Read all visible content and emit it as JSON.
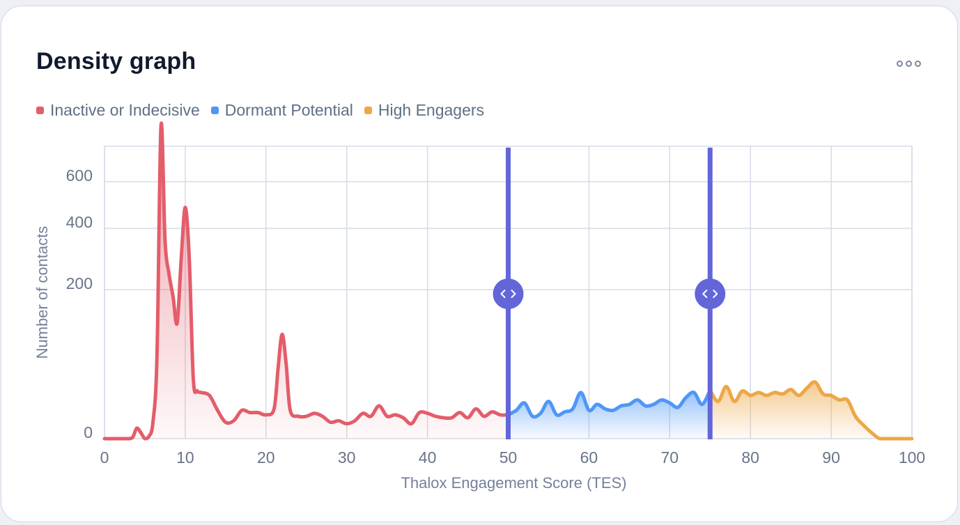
{
  "card": {
    "title": "Density graph",
    "menu_icon": "more-horizontal-icon"
  },
  "legend": [
    {
      "label": "Inactive or Indecisive",
      "color": "#e35d6a"
    },
    {
      "label": "Dormant Potential",
      "color": "#4f97f7"
    },
    {
      "label": "High Engagers",
      "color": "#eda746"
    }
  ],
  "chart_data": {
    "type": "area",
    "title": "Density graph",
    "xlabel": "Thalox Engagement Score (TES)",
    "ylabel": "Number of contacts",
    "xlim": [
      0,
      100
    ],
    "x_ticks": [
      0,
      10,
      20,
      30,
      40,
      50,
      60,
      70,
      80,
      90,
      100
    ],
    "y_ticks": [
      0,
      200,
      400,
      600
    ],
    "y_ticklabels": [
      "0",
      "200",
      "400",
      "600"
    ],
    "y_scale": "nonlinear (tick spacing 0–200 much larger than 200–600)",
    "grid": true,
    "legend_position": "top-left",
    "segments": [
      {
        "name": "Inactive or Indecisive",
        "from": 0,
        "to": 50,
        "color": "#e35d6a"
      },
      {
        "name": "Dormant Potential",
        "from": 50,
        "to": 75,
        "color": "#4f97f7"
      },
      {
        "name": "High Engagers",
        "from": 75,
        "to": 100,
        "color": "#eda746"
      }
    ],
    "thresholds": [
      {
        "value": 50,
        "icon": "drag-handle-icon"
      },
      {
        "value": 75,
        "icon": "drag-handle-icon"
      }
    ],
    "threshold_color": "#6366d8",
    "x": [
      0,
      1,
      2,
      3,
      3.5,
      4,
      4.5,
      5,
      5.5,
      6,
      6.5,
      7,
      7.5,
      8,
      8.5,
      9,
      9.5,
      10,
      10.5,
      11,
      11.5,
      12,
      13,
      14,
      15,
      16,
      17,
      18,
      19,
      20,
      21,
      21.5,
      22,
      22.5,
      23,
      24,
      25,
      26,
      27,
      28,
      29,
      30,
      31,
      32,
      33,
      34,
      35,
      36,
      37,
      38,
      39,
      40,
      41,
      42,
      43,
      44,
      45,
      46,
      47,
      48,
      49,
      50,
      51,
      52,
      53,
      54,
      55,
      56,
      57,
      58,
      59,
      60,
      61,
      62,
      63,
      64,
      65,
      66,
      67,
      68,
      69,
      70,
      71,
      72,
      73,
      74,
      75,
      76,
      77,
      78,
      79,
      80,
      81,
      82,
      83,
      84,
      85,
      86,
      87,
      88,
      89,
      90,
      91,
      92,
      93,
      94,
      95,
      96,
      97,
      98,
      99,
      100
    ],
    "y": [
      0,
      0,
      0,
      0,
      2,
      14,
      8,
      0,
      3,
      22,
      110,
      840,
      360,
      250,
      190,
      155,
      300,
      490,
      300,
      80,
      64,
      62,
      58,
      38,
      22,
      24,
      38,
      35,
      35,
      32,
      40,
      95,
      140,
      100,
      38,
      30,
      30,
      34,
      30,
      22,
      24,
      20,
      24,
      34,
      30,
      44,
      30,
      32,
      28,
      20,
      35,
      34,
      30,
      28,
      28,
      35,
      28,
      40,
      30,
      36,
      32,
      32,
      38,
      48,
      30,
      34,
      50,
      32,
      36,
      40,
      62,
      38,
      46,
      40,
      38,
      44,
      46,
      52,
      44,
      46,
      52,
      48,
      42,
      55,
      62,
      46,
      65,
      50,
      70,
      50,
      64,
      58,
      62,
      58,
      62,
      60,
      66,
      58,
      68,
      76,
      60,
      58,
      52,
      52,
      30,
      18,
      8,
      0,
      0,
      0,
      0,
      0
    ]
  }
}
